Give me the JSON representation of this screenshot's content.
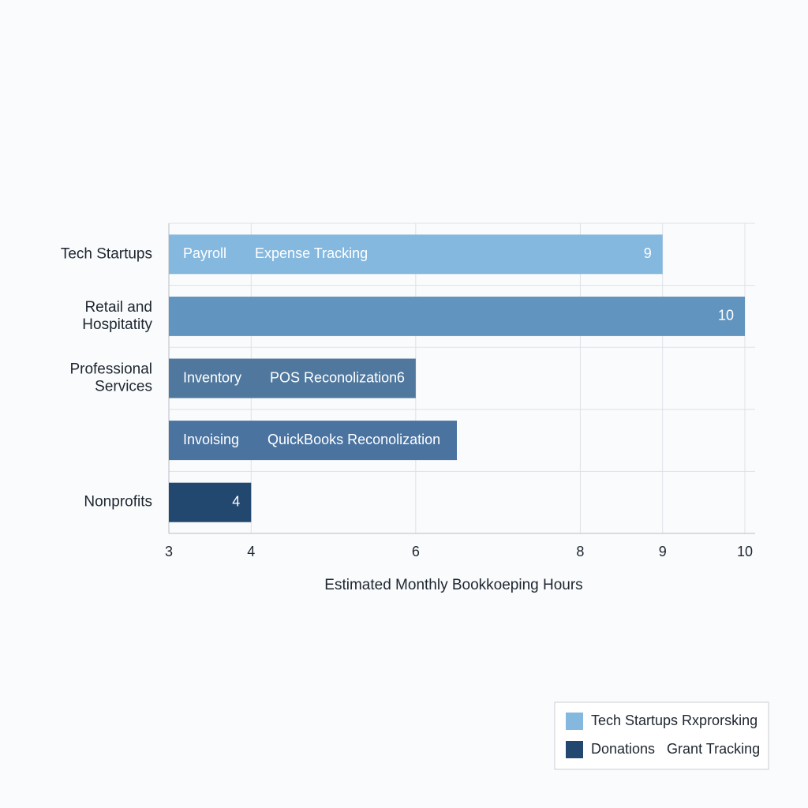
{
  "chart_data": {
    "type": "bar",
    "orientation": "horizontal",
    "categories": [
      "Tech Startups",
      "Retail and\nHospitatity",
      "Professional\nServices",
      null,
      "Nonprofits"
    ],
    "values": [
      9,
      10,
      6,
      6.5,
      4
    ],
    "value_labels": [
      "9",
      "10",
      "6",
      null,
      "4"
    ],
    "colors": [
      "#85b8df",
      "#6194bf",
      "#50789e",
      "#4a73a0",
      "#23486f"
    ],
    "bar_texts": [
      [
        "Payroll",
        "Expense Tracking"
      ],
      [],
      [
        "Inventory",
        "POS Reconolization"
      ],
      [
        "Invoising",
        "QuickBooks Reconolization"
      ],
      []
    ],
    "xlabel": "Estimated Monthly Bookkoeping Hours",
    "xlim": [
      3,
      10
    ],
    "xticks": [
      3,
      4,
      6,
      8,
      9,
      10
    ],
    "grid": true,
    "legend_position": "bottom-right",
    "legend": [
      {
        "name": "Tech Startups Rxprorsking",
        "color": "#85b8df"
      },
      {
        "name": "Donations   Grant Tracking",
        "color": "#23486f"
      }
    ]
  }
}
